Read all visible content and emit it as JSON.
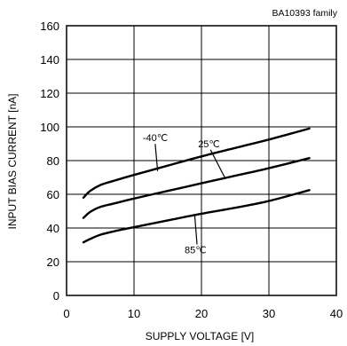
{
  "chart_data": {
    "type": "line",
    "family_label": "BA10393  family",
    "xlabel": "SUPPLY VOLTAGE  [V]",
    "ylabel": "INPUT BIAS CURRENT [nA]",
    "xlim": [
      0,
      40
    ],
    "ylim": [
      0,
      160
    ],
    "xticks": [
      0,
      10,
      20,
      30,
      40
    ],
    "yticks": [
      0,
      20,
      40,
      60,
      80,
      100,
      120,
      140,
      160
    ],
    "grid": true,
    "series": [
      {
        "name": "-40℃",
        "x": [
          2.5,
          3.5,
          5,
          7,
          10,
          15,
          20,
          25,
          30,
          36
        ],
        "y": [
          58,
          62,
          65.5,
          68,
          71.5,
          77,
          82.5,
          87.5,
          92.5,
          99
        ]
      },
      {
        "name": "25℃",
        "x": [
          2.5,
          3.5,
          5,
          7,
          10,
          15,
          20,
          25,
          30,
          36
        ],
        "y": [
          46,
          49.5,
          52.5,
          54.5,
          57.5,
          62,
          66.5,
          71,
          75.5,
          81.5
        ]
      },
      {
        "name": "85℃",
        "x": [
          2.5,
          3.5,
          5,
          7,
          10,
          15,
          20,
          25,
          30,
          36
        ],
        "y": [
          31.5,
          33.5,
          36,
          38,
          40.5,
          44.5,
          48.5,
          52,
          56,
          62.5
        ]
      }
    ],
    "annotations": [
      {
        "text": "-40℃",
        "series": 0,
        "label_at": [
          11.3,
          91.5
        ],
        "pointer_to": [
          13.5,
          73.8
        ]
      },
      {
        "text": "25℃",
        "series": 1,
        "label_at": [
          19.5,
          88
        ],
        "pointer_to": [
          23.5,
          69.6
        ]
      },
      {
        "text": "85℃",
        "series": 2,
        "label_at": [
          17.5,
          25
        ],
        "pointer_to": [
          19,
          47.7
        ]
      }
    ]
  }
}
